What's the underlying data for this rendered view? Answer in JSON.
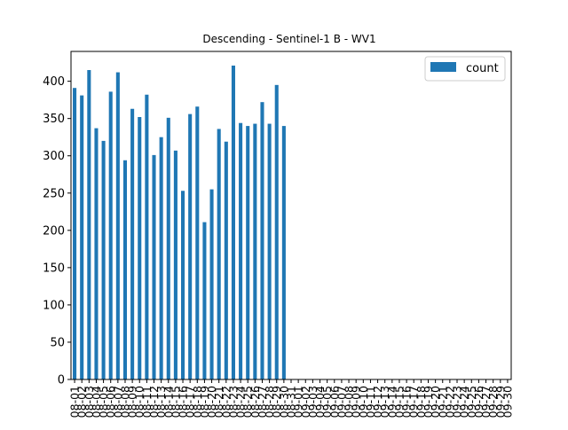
{
  "chart_data": {
    "type": "bar",
    "title": "Descending - Sentinel-1 B - WV1",
    "xlabel": "",
    "ylabel": "",
    "ylim": [
      0,
      440
    ],
    "yticks": [
      0,
      50,
      100,
      150,
      200,
      250,
      300,
      350,
      400
    ],
    "legend_position": "top-right",
    "grid": false,
    "bar_color": "#1f77b4",
    "categories": [
      "08-01",
      "08-02",
      "08-03",
      "08-04",
      "08-05",
      "08-06",
      "08-07",
      "08-08",
      "08-09",
      "08-10",
      "08-11",
      "08-12",
      "08-13",
      "08-14",
      "08-15",
      "08-16",
      "08-17",
      "08-18",
      "08-19",
      "08-20",
      "08-21",
      "08-22",
      "08-23",
      "08-24",
      "08-25",
      "08-26",
      "08-27",
      "08-28",
      "08-29",
      "08-30",
      "08-31",
      "09-01",
      "09-02",
      "09-03",
      "09-04",
      "09-05",
      "09-06",
      "09-07",
      "09-08",
      "09-09",
      "09-10",
      "09-11",
      "09-12",
      "09-13",
      "09-14",
      "09-15",
      "09-16",
      "09-17",
      "09-18",
      "09-19",
      "09-20",
      "09-21",
      "09-22",
      "09-23",
      "09-24",
      "09-25",
      "09-26",
      "09-27",
      "09-28",
      "09-29",
      "09-30"
    ],
    "series": [
      {
        "name": "count",
        "values": [
          391,
          381,
          415,
          337,
          320,
          386,
          412,
          294,
          363,
          352,
          382,
          301,
          325,
          351,
          307,
          253,
          356,
          366,
          211,
          255,
          336,
          319,
          421,
          344,
          340,
          343,
          372,
          343,
          395,
          340,
          null,
          null,
          null,
          null,
          null,
          null,
          null,
          null,
          null,
          null,
          null,
          null,
          null,
          null,
          null,
          null,
          null,
          null,
          null,
          null,
          null,
          null,
          null,
          null,
          null,
          null,
          null,
          null,
          null,
          null,
          null
        ]
      }
    ]
  }
}
